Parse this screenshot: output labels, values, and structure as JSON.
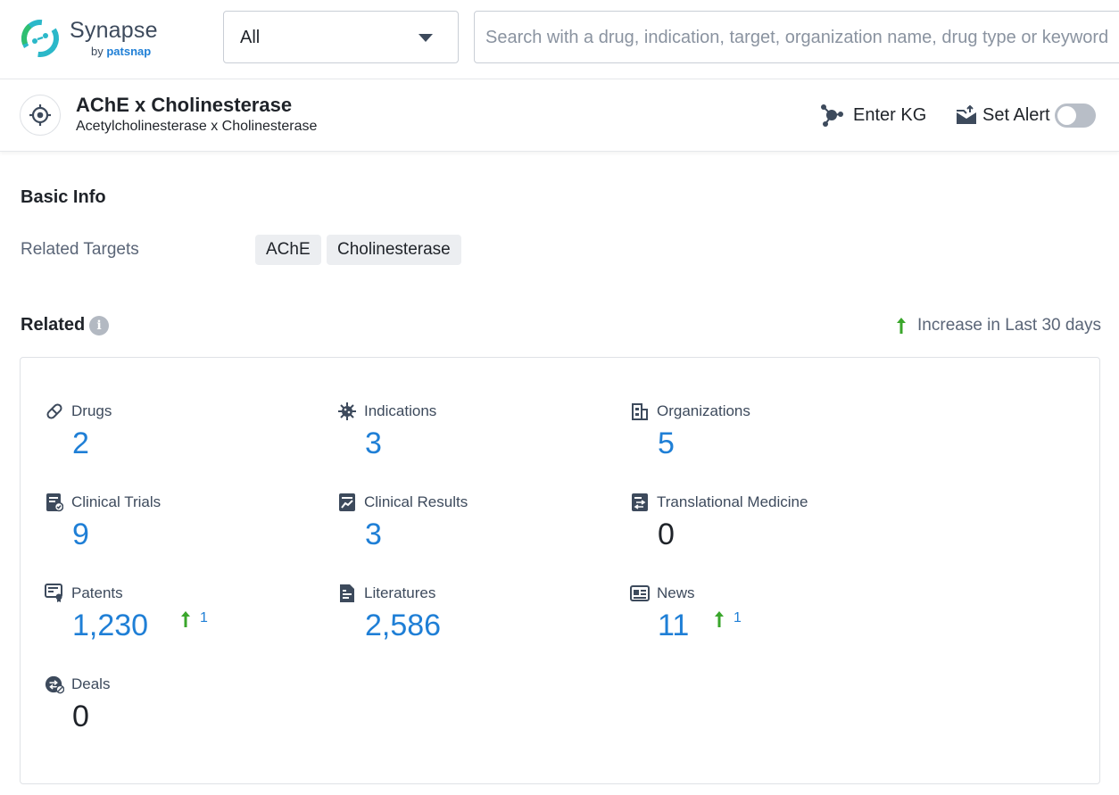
{
  "header": {
    "logo_text": "Synapse",
    "logo_by": "by",
    "logo_brand": "patsnap",
    "search_scope": "All",
    "search_placeholder": "Search with a drug, indication, target, organization name, drug type or keyword"
  },
  "target": {
    "title": "AChE x Cholinesterase",
    "subtitle": "Acetylcholinesterase x Cholinesterase",
    "enter_kg_label": "Enter KG",
    "set_alert_label": "Set Alert",
    "alert_enabled": false
  },
  "basic_info": {
    "title": "Basic Info",
    "related_targets_label": "Related Targets",
    "tags": [
      "AChE",
      "Cholinesterase"
    ]
  },
  "related": {
    "title": "Related",
    "info_icon": "i",
    "legend_label": "Increase in Last 30 days",
    "stats": [
      {
        "label": "Drugs",
        "value": "2",
        "icon": "pill-icon"
      },
      {
        "label": "Indications",
        "value": "3",
        "icon": "virus-icon"
      },
      {
        "label": "Organizations",
        "value": "5",
        "icon": "building-icon"
      },
      {
        "label": "Clinical Trials",
        "value": "9",
        "icon": "clinical-trial-icon"
      },
      {
        "label": "Clinical Results",
        "value": "3",
        "icon": "clinical-result-icon"
      },
      {
        "label": "Translational Medicine",
        "value": "0",
        "icon": "translational-icon"
      },
      {
        "label": "Patents",
        "value": "1,230",
        "icon": "patent-icon",
        "increase": "1"
      },
      {
        "label": "Literatures",
        "value": "2,586",
        "icon": "literature-icon"
      },
      {
        "label": "News",
        "value": "11",
        "icon": "news-icon",
        "increase": "1"
      },
      {
        "label": "Deals",
        "value": "0",
        "icon": "deal-icon"
      }
    ]
  },
  "colors": {
    "accent": "#1f7fd6",
    "increase": "#3aa62b",
    "muted": "#5a6577"
  }
}
